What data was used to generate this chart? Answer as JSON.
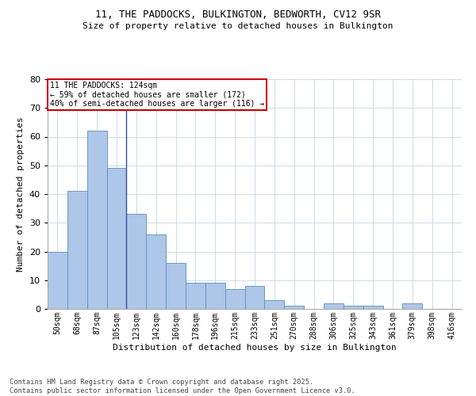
{
  "title_line1": "11, THE PADDOCKS, BULKINGTON, BEDWORTH, CV12 9SR",
  "title_line2": "Size of property relative to detached houses in Bulkington",
  "xlabel": "Distribution of detached houses by size in Bulkington",
  "ylabel": "Number of detached properties",
  "bar_color": "#aec6e8",
  "bar_edge_color": "#5a8fc0",
  "categories": [
    "50sqm",
    "68sqm",
    "87sqm",
    "105sqm",
    "123sqm",
    "142sqm",
    "160sqm",
    "178sqm",
    "196sqm",
    "215sqm",
    "233sqm",
    "251sqm",
    "270sqm",
    "288sqm",
    "306sqm",
    "325sqm",
    "343sqm",
    "361sqm",
    "379sqm",
    "398sqm",
    "416sqm"
  ],
  "values": [
    20,
    41,
    62,
    49,
    33,
    26,
    16,
    9,
    9,
    7,
    8,
    3,
    1,
    0,
    2,
    1,
    1,
    0,
    2,
    0,
    0
  ],
  "ylim": [
    0,
    80
  ],
  "yticks": [
    0,
    10,
    20,
    30,
    40,
    50,
    60,
    70,
    80
  ],
  "annotation_text": "11 THE PADDOCKS: 124sqm\n← 59% of detached houses are smaller (172)\n40% of semi-detached houses are larger (116) →",
  "annotation_box_color": "#ffffff",
  "annotation_box_edge_color": "#cc0000",
  "vline_x_index": 4,
  "background_color": "#ffffff",
  "grid_color": "#c8d4e8",
  "footnote": "Contains HM Land Registry data © Crown copyright and database right 2025.\nContains public sector information licensed under the Open Government Licence v3.0."
}
